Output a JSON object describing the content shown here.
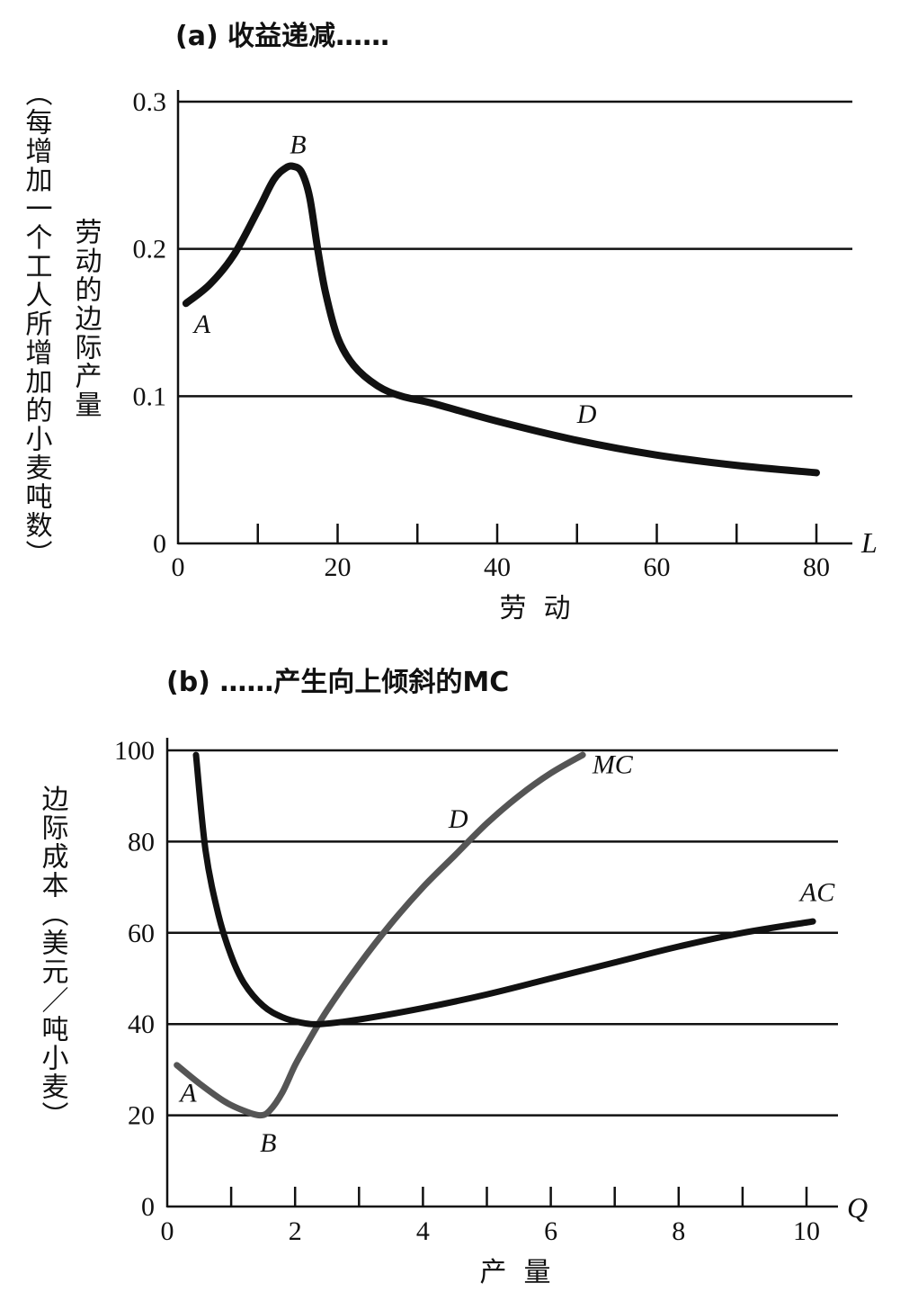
{
  "chart_data": [
    {
      "type": "line",
      "title": "(a) 收益递减……",
      "xlabel": "劳  动",
      "ylabel_inner": "劳动的边际产量",
      "ylabel_outer": "（每增加一个工人所增加的小麦吨数）",
      "x_var": "L",
      "xlim": [
        0,
        85
      ],
      "ylim": [
        0,
        0.3
      ],
      "x_ticks": [
        0,
        20,
        40,
        60,
        80
      ],
      "x_minor_ticks": [
        10,
        30,
        50,
        70
      ],
      "y_ticks": [
        0,
        0.1,
        0.2,
        0.3
      ],
      "y_tick_labels": [
        "0",
        "0.1",
        "0.2",
        "0.3"
      ],
      "gridlines_y": [
        0.1,
        0.2,
        0.3
      ],
      "series": [
        {
          "name": "Marginal product of labor",
          "x": [
            1,
            4,
            7,
            10,
            12,
            13.5,
            14.5,
            15.5,
            16.5,
            17.5,
            18.5,
            20,
            22,
            25,
            28,
            32,
            40,
            50,
            60,
            70,
            80
          ],
          "y": [
            0.163,
            0.176,
            0.196,
            0.226,
            0.247,
            0.255,
            0.256,
            0.252,
            0.235,
            0.2,
            0.17,
            0.14,
            0.121,
            0.107,
            0.1,
            0.095,
            0.083,
            0.07,
            0.06,
            0.053,
            0.048
          ]
        }
      ],
      "annotations": [
        {
          "label": "A",
          "x": 2,
          "y": 0.143
        },
        {
          "label": "B",
          "x": 14,
          "y": 0.265
        },
        {
          "label": "D",
          "x": 50,
          "y": 0.082
        }
      ]
    },
    {
      "type": "line",
      "title": "(b) ……产生向上倾斜的MC",
      "xlabel": "产  量",
      "ylabel": "边际成本（美元／吨小麦）",
      "x_var": "Q",
      "xlim": [
        0,
        10.5
      ],
      "ylim": [
        0,
        100
      ],
      "x_ticks": [
        0,
        2,
        4,
        6,
        8,
        10
      ],
      "x_minor_ticks": [
        1,
        3,
        5,
        7,
        9
      ],
      "y_ticks": [
        0,
        20,
        40,
        60,
        80,
        100
      ],
      "y_tick_labels": [
        "0",
        "20",
        "40",
        "60",
        "80",
        "100"
      ],
      "gridlines_y": [
        20,
        40,
        60,
        80,
        100
      ],
      "series": [
        {
          "name": "MC",
          "x": [
            0.15,
            0.5,
            0.9,
            1.2,
            1.45,
            1.6,
            1.8,
            2.0,
            2.2,
            2.5,
            3.0,
            3.5,
            4.0,
            4.5,
            5.0,
            5.5,
            6.0,
            6.5
          ],
          "y": [
            31,
            27,
            23,
            21,
            20,
            21,
            25,
            31,
            36,
            43,
            53,
            62,
            70,
            77,
            84,
            90,
            95,
            99
          ]
        },
        {
          "name": "AC",
          "x": [
            0.45,
            0.6,
            0.8,
            1.0,
            1.2,
            1.5,
            1.8,
            2.1,
            2.4,
            3.0,
            4.0,
            5.0,
            6.0,
            7.0,
            8.0,
            9.0,
            10.1
          ],
          "y": [
            99,
            78,
            64,
            55,
            49,
            44,
            41.5,
            40.3,
            40,
            41,
            43.5,
            46.5,
            50,
            53.5,
            57,
            60,
            62.5
          ]
        }
      ],
      "annotations": [
        {
          "label": "A",
          "x": 0.2,
          "y": 23
        },
        {
          "label": "B",
          "x": 1.45,
          "y": 12
        },
        {
          "label": "D",
          "x": 4.4,
          "y": 83
        },
        {
          "label": "MC",
          "x": 6.65,
          "y": 95
        },
        {
          "label": "AC",
          "x": 9.9,
          "y": 67
        }
      ]
    }
  ]
}
